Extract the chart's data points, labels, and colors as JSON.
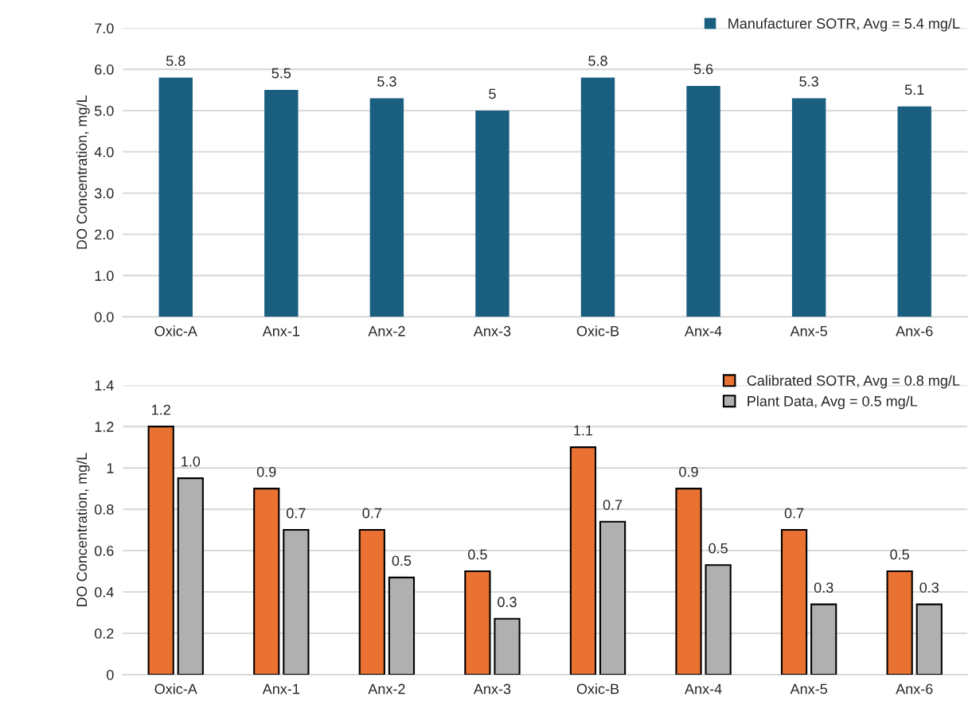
{
  "chart_data": [
    {
      "type": "bar",
      "ylabel": "DO Concentration, mg/L",
      "categories": [
        "Oxic-A",
        "Anx-1",
        "Anx-2",
        "Anx-3",
        "Oxic-B",
        "Anx-4",
        "Anx-5",
        "Anx-6"
      ],
      "series": [
        {
          "name": "Manufacturer SOTR, Avg = 5.4 mg/L",
          "color": "#1a5e80",
          "values": [
            5.8,
            5.5,
            5.3,
            5,
            5.8,
            5.6,
            5.3,
            5.1
          ],
          "value_labels": [
            "5.8",
            "5.5",
            "5.3",
            "5",
            "5.8",
            "5.6",
            "5.3",
            "5.1"
          ]
        }
      ],
      "ylim": [
        0,
        7
      ],
      "yticks": [
        {
          "value": 0,
          "label": "0.0"
        },
        {
          "value": 1,
          "label": "1.0"
        },
        {
          "value": 2,
          "label": "2.0"
        },
        {
          "value": 3,
          "label": "3.0"
        },
        {
          "value": 4,
          "label": "4.0"
        },
        {
          "value": 5,
          "label": "5.0"
        },
        {
          "value": 6,
          "label": "6.0"
        },
        {
          "value": 7,
          "label": "7.0"
        }
      ],
      "grid": "y",
      "legend": "top right"
    },
    {
      "type": "bar",
      "ylabel": "DO Concentration, mg/L",
      "categories": [
        "Oxic-A",
        "Anx-1",
        "Anx-2",
        "Anx-3",
        "Oxic-B",
        "Anx-4",
        "Anx-5",
        "Anx-6"
      ],
      "series": [
        {
          "name": "Calibrated SOTR, Avg = 0.8 mg/L",
          "color": "#e97132",
          "values": [
            1.2,
            0.9,
            0.7,
            0.5,
            1.1,
            0.9,
            0.7,
            0.5
          ],
          "value_labels": [
            "1.2",
            "0.9",
            "0.7",
            "0.5",
            "1.1",
            "0.9",
            "0.7",
            "0.5"
          ]
        },
        {
          "name": "Plant Data, Avg = 0.5 mg/L",
          "color": "#b0b0b0",
          "values": [
            0.95,
            0.7,
            0.47,
            0.27,
            0.74,
            0.53,
            0.34,
            0.34
          ],
          "value_labels": [
            "1.0",
            "0.7",
            "0.5",
            "0.3",
            "0.7",
            "0.5",
            "0.3",
            "0.3"
          ]
        }
      ],
      "ylim": [
        0,
        1.4
      ],
      "yticks": [
        0,
        0.2,
        0.4,
        0.6,
        0.8,
        1,
        1.2,
        1.4
      ],
      "grid": "y",
      "legend": "top right"
    }
  ]
}
